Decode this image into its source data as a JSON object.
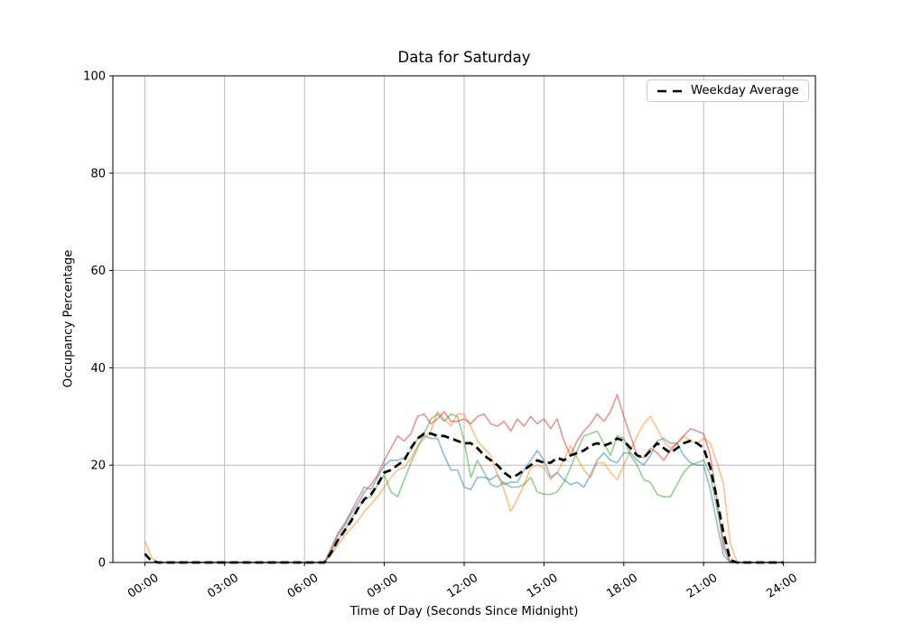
{
  "title": "Data for Saturday",
  "legend": {
    "entries": [
      {
        "label": "Weekday Average",
        "style": "dashed",
        "color": "#000000"
      }
    ],
    "position": "upper right"
  },
  "chart_data": {
    "type": "line",
    "title": "Data for Saturday",
    "xlabel": "Time of Day (Seconds Since Midnight)",
    "ylabel": "Occupancy Percentage",
    "grid": true,
    "xlim_hours": [
      -1.2,
      25.2
    ],
    "ylim": [
      0,
      100
    ],
    "x_tick_hours": [
      0,
      3,
      6,
      9,
      12,
      15,
      18,
      21,
      24
    ],
    "x_tick_labels": [
      "00:00",
      "03:00",
      "06:00",
      "09:00",
      "12:00",
      "15:00",
      "18:00",
      "21:00",
      "24:00"
    ],
    "y_ticks": [
      0,
      20,
      40,
      60,
      80,
      100
    ],
    "x_start_hour": 0,
    "x_step_hours": 0.25,
    "series": [
      {
        "name": "series-blue",
        "color": "#1f77b4",
        "opacity": 0.5,
        "values": [
          0,
          0,
          0,
          0,
          0,
          0,
          0,
          0,
          0,
          0,
          0,
          0,
          0,
          0,
          0,
          0,
          0,
          0,
          0,
          0,
          0,
          0,
          0,
          0,
          0,
          0,
          0,
          0,
          3,
          6,
          8,
          10.5,
          13,
          15.5,
          15,
          17.5,
          20,
          21,
          21,
          21.5,
          23,
          25.5,
          26,
          25.5,
          25.5,
          22,
          19,
          19,
          15.5,
          15,
          17.5,
          17.5,
          17,
          18,
          16,
          16.5,
          16.5,
          19,
          21,
          23,
          21,
          17.5,
          18.5,
          17,
          16,
          16.5,
          15.5,
          18,
          21,
          22.5,
          21,
          20.5,
          22.5,
          22.5,
          21,
          20,
          22,
          25,
          25.5,
          24.5,
          24.5,
          22,
          20.5,
          20,
          20,
          15,
          8,
          1.5,
          0,
          0,
          0,
          0,
          0,
          0,
          0,
          0,
          0
        ]
      },
      {
        "name": "series-orange",
        "color": "#ff7f0e",
        "opacity": 0.5,
        "values": [
          4.5,
          1,
          0,
          0,
          0,
          0,
          0,
          0,
          0,
          0,
          0,
          0,
          0,
          0,
          0,
          0,
          0,
          0,
          0,
          0,
          0,
          0,
          0,
          0,
          0,
          0,
          0,
          0,
          1.5,
          3.5,
          5.5,
          7,
          8.5,
          10.5,
          12,
          13.5,
          15.5,
          17.5,
          19,
          19.5,
          21.5,
          24,
          25.5,
          27,
          31,
          29.5,
          28,
          30.5,
          30.5,
          28,
          25,
          23.5,
          22,
          18,
          15,
          10.5,
          13,
          16,
          19.5,
          20,
          19.5,
          17,
          18.5,
          21,
          24,
          21.5,
          19,
          17.5,
          20.5,
          20.5,
          18.5,
          17,
          20,
          23,
          26,
          28.5,
          30,
          27.5,
          25,
          23.5,
          24.5,
          26,
          25,
          24.5,
          25.5,
          24.5,
          20.5,
          16,
          4,
          0,
          0,
          0,
          0,
          0,
          0,
          0,
          0
        ]
      },
      {
        "name": "series-green",
        "color": "#2ca02c",
        "opacity": 0.5,
        "values": [
          0,
          0,
          0,
          0,
          0,
          0,
          0,
          0,
          0,
          0,
          0,
          0,
          0,
          0,
          0,
          0,
          0,
          0,
          0,
          0,
          0,
          0,
          0,
          0,
          0,
          0,
          0,
          0,
          2,
          4.5,
          6.5,
          9,
          11,
          13,
          13.5,
          16,
          18,
          14.5,
          13.5,
          17,
          20.5,
          23.5,
          26.5,
          29.5,
          30.5,
          29,
          30.5,
          30,
          25,
          17.5,
          21,
          18.5,
          16,
          15.5,
          16.5,
          15.5,
          15.5,
          16,
          17.5,
          14.5,
          14,
          14,
          14.5,
          16.5,
          19.5,
          23,
          26,
          26.5,
          27,
          24.5,
          22,
          26,
          25.5,
          22,
          20,
          17,
          16.5,
          14,
          13.5,
          13.5,
          16,
          18.5,
          20,
          20.5,
          21,
          18,
          11,
          4,
          0,
          0,
          0,
          0,
          0,
          0,
          0,
          0,
          0
        ]
      },
      {
        "name": "series-red",
        "color": "#d62728",
        "opacity": 0.5,
        "values": [
          0,
          0,
          0,
          0,
          0,
          0,
          0,
          0,
          0,
          0,
          0,
          0,
          0,
          0,
          0,
          0,
          0,
          0,
          0,
          0,
          0,
          0,
          0,
          0,
          0,
          0,
          0,
          0,
          2.5,
          5.5,
          7.5,
          10,
          12,
          14.5,
          16,
          18,
          21,
          23.5,
          26,
          25,
          26.5,
          30,
          30.5,
          28.5,
          29.5,
          31,
          29,
          29,
          29.5,
          28.5,
          30,
          30.5,
          28.5,
          28,
          29,
          27,
          29.5,
          28,
          30,
          28.5,
          29.5,
          27.5,
          29.5,
          25,
          22,
          25,
          27,
          28.5,
          30.5,
          29,
          31,
          34.5,
          30,
          26,
          22,
          21.5,
          23.5,
          22.5,
          21,
          23,
          24.5,
          26,
          27.5,
          27,
          26.5,
          22,
          13,
          3,
          0,
          0,
          0,
          0,
          0,
          0,
          0,
          0,
          0
        ]
      }
    ],
    "average": {
      "name": "Weekday Average",
      "color": "#000000",
      "dashed": true,
      "values": [
        1.8,
        0.3,
        0,
        0,
        0,
        0,
        0,
        0,
        0,
        0,
        0,
        0,
        0,
        0,
        0,
        0,
        0,
        0,
        0,
        0,
        0,
        0,
        0,
        0,
        0,
        0,
        0,
        0,
        2,
        4.5,
        6.5,
        8.5,
        11,
        13,
        14,
        16,
        18.5,
        19,
        20,
        21,
        23.5,
        25.5,
        26.5,
        26.5,
        26,
        26,
        25.5,
        25,
        24.5,
        24.5,
        23.5,
        22,
        21,
        20,
        18.5,
        17.5,
        18,
        19,
        20,
        21,
        20.5,
        20.5,
        21.5,
        21,
        22,
        22.5,
        23,
        24,
        24.5,
        24,
        24.5,
        25.5,
        25,
        23.5,
        22,
        21.5,
        23,
        24.5,
        23.5,
        22.5,
        23.5,
        24.5,
        25,
        24.5,
        23.5,
        19.5,
        13,
        6,
        0.5,
        0,
        0,
        0,
        0,
        0,
        0,
        0,
        0
      ]
    }
  }
}
